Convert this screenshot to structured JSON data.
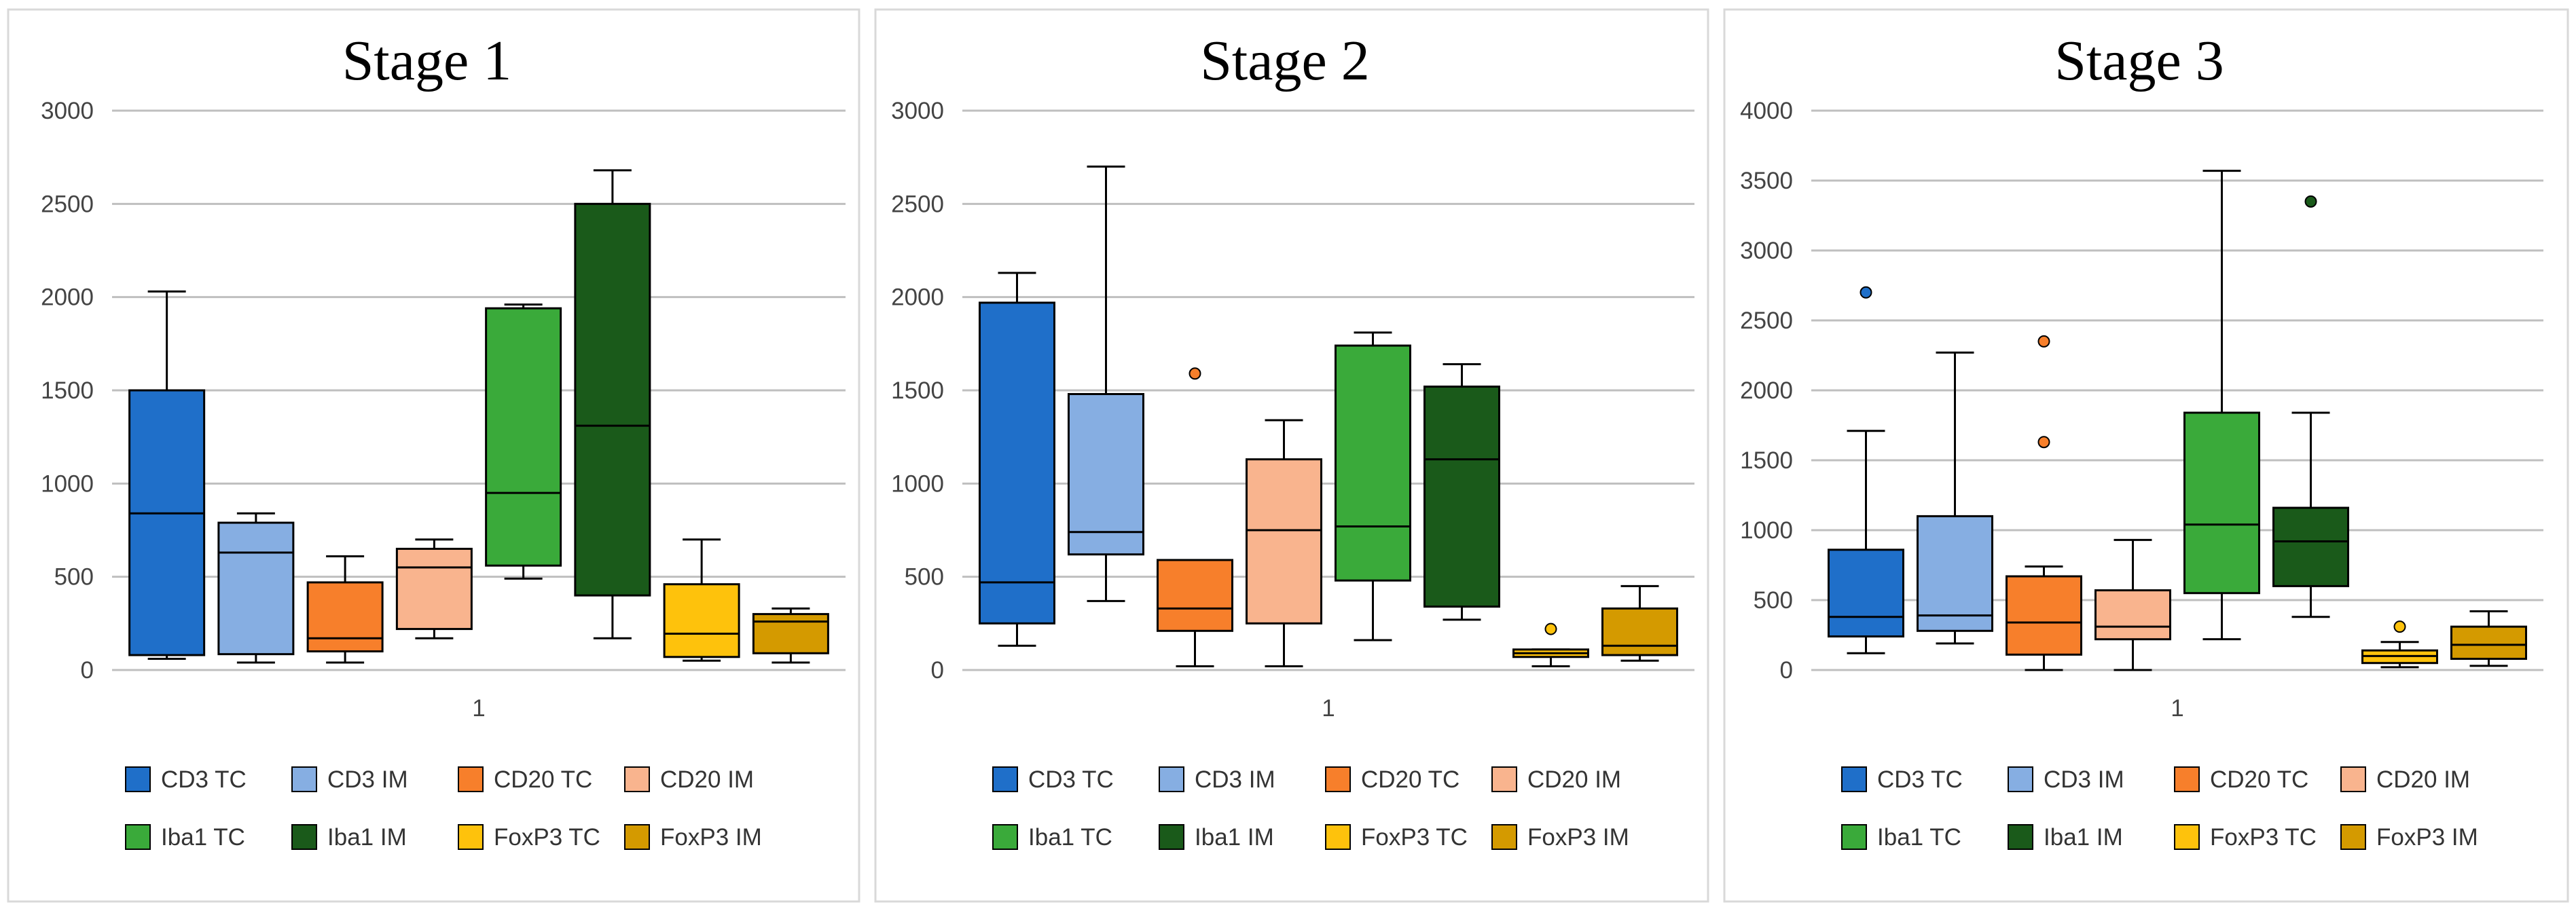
{
  "chart_data": [
    {
      "type": "boxplot",
      "title": "Stage 1",
      "x_category": "1",
      "ylim": [
        0,
        3000
      ],
      "yticks": [
        0,
        500,
        1000,
        1500,
        2000,
        2500,
        3000
      ],
      "grid": true,
      "legend_position": "bottom",
      "series": [
        {
          "name": "CD3 TC",
          "color": "#1f6fc9",
          "min": 60,
          "q1": 80,
          "median": 840,
          "q3": 1500,
          "max": 2030,
          "outliers": []
        },
        {
          "name": "CD3 IM",
          "color": "#86aee2",
          "min": 40,
          "q1": 85,
          "median": 630,
          "q3": 790,
          "max": 840,
          "outliers": []
        },
        {
          "name": "CD20 TC",
          "color": "#f77f2b",
          "min": 40,
          "q1": 100,
          "median": 170,
          "q3": 470,
          "max": 610,
          "outliers": []
        },
        {
          "name": "CD20 IM",
          "color": "#f9b48e",
          "min": 170,
          "q1": 220,
          "median": 550,
          "q3": 650,
          "max": 700,
          "outliers": []
        },
        {
          "name": "Iba1 TC",
          "color": "#3aaa3a",
          "min": 490,
          "q1": 560,
          "median": 950,
          "q3": 1940,
          "max": 1960,
          "outliers": []
        },
        {
          "name": "Iba1 IM",
          "color": "#1a5a1a",
          "min": 170,
          "q1": 400,
          "median": 1310,
          "q3": 2500,
          "max": 2680,
          "outliers": []
        },
        {
          "name": "FoxP3 TC",
          "color": "#fec20c",
          "min": 50,
          "q1": 70,
          "median": 195,
          "q3": 460,
          "max": 700,
          "outliers": []
        },
        {
          "name": "FoxP3 IM",
          "color": "#d49a00",
          "min": 40,
          "q1": 90,
          "median": 260,
          "q3": 300,
          "max": 330,
          "outliers": []
        }
      ]
    },
    {
      "type": "boxplot",
      "title": "Stage 2",
      "x_category": "1",
      "ylim": [
        0,
        3000
      ],
      "yticks": [
        0,
        500,
        1000,
        1500,
        2000,
        2500,
        3000
      ],
      "grid": true,
      "legend_position": "bottom",
      "series": [
        {
          "name": "CD3 TC",
          "color": "#1f6fc9",
          "min": 130,
          "q1": 250,
          "median": 470,
          "q3": 1970,
          "max": 2130,
          "outliers": []
        },
        {
          "name": "CD3 IM",
          "color": "#86aee2",
          "min": 370,
          "q1": 620,
          "median": 740,
          "q3": 1480,
          "max": 2700,
          "outliers": []
        },
        {
          "name": "CD20 TC",
          "color": "#f77f2b",
          "min": 20,
          "q1": 210,
          "median": 330,
          "q3": 590,
          "max": 590,
          "outliers": [
            1590
          ]
        },
        {
          "name": "CD20 IM",
          "color": "#f9b48e",
          "min": 20,
          "q1": 250,
          "median": 750,
          "q3": 1130,
          "max": 1340,
          "outliers": []
        },
        {
          "name": "Iba1 TC",
          "color": "#3aaa3a",
          "min": 160,
          "q1": 480,
          "median": 770,
          "q3": 1740,
          "max": 1810,
          "outliers": []
        },
        {
          "name": "Iba1 IM",
          "color": "#1a5a1a",
          "min": 270,
          "q1": 340,
          "median": 1130,
          "q3": 1520,
          "max": 1640,
          "outliers": []
        },
        {
          "name": "FoxP3 TC",
          "color": "#fec20c",
          "min": 20,
          "q1": 70,
          "median": 90,
          "q3": 110,
          "max": 110,
          "outliers": [
            220
          ]
        },
        {
          "name": "FoxP3 IM",
          "color": "#d49a00",
          "min": 50,
          "q1": 80,
          "median": 130,
          "q3": 330,
          "max": 450,
          "outliers": []
        }
      ]
    },
    {
      "type": "boxplot",
      "title": "Stage 3",
      "x_category": "1",
      "ylim": [
        0,
        4000
      ],
      "yticks": [
        0,
        500,
        1000,
        1500,
        2000,
        2500,
        3000,
        3500,
        4000
      ],
      "grid": true,
      "legend_position": "bottom",
      "series": [
        {
          "name": "CD3 TC",
          "color": "#1f6fc9",
          "min": 120,
          "q1": 240,
          "median": 380,
          "q3": 860,
          "max": 1710,
          "outliers": [
            2700
          ]
        },
        {
          "name": "CD3 IM",
          "color": "#86aee2",
          "min": 190,
          "q1": 280,
          "median": 390,
          "q3": 1100,
          "max": 2270,
          "outliers": []
        },
        {
          "name": "CD20 TC",
          "color": "#f77f2b",
          "min": 0,
          "q1": 110,
          "median": 340,
          "q3": 670,
          "max": 740,
          "outliers": [
            1630,
            2350
          ]
        },
        {
          "name": "CD20 IM",
          "color": "#f9b48e",
          "min": 0,
          "q1": 220,
          "median": 310,
          "q3": 570,
          "max": 930,
          "outliers": []
        },
        {
          "name": "Iba1 TC",
          "color": "#3aaa3a",
          "min": 220,
          "q1": 550,
          "median": 1040,
          "q3": 1840,
          "max": 3570,
          "outliers": []
        },
        {
          "name": "Iba1 IM",
          "color": "#1a5a1a",
          "min": 380,
          "q1": 600,
          "median": 920,
          "q3": 1160,
          "max": 1840,
          "outliers": [
            3350
          ]
        },
        {
          "name": "FoxP3 TC",
          "color": "#fec20c",
          "min": 20,
          "q1": 50,
          "median": 100,
          "q3": 140,
          "max": 200,
          "outliers": [
            310
          ]
        },
        {
          "name": "FoxP3 IM",
          "color": "#d49a00",
          "min": 30,
          "q1": 80,
          "median": 180,
          "q3": 310,
          "max": 420,
          "outliers": []
        }
      ]
    }
  ]
}
